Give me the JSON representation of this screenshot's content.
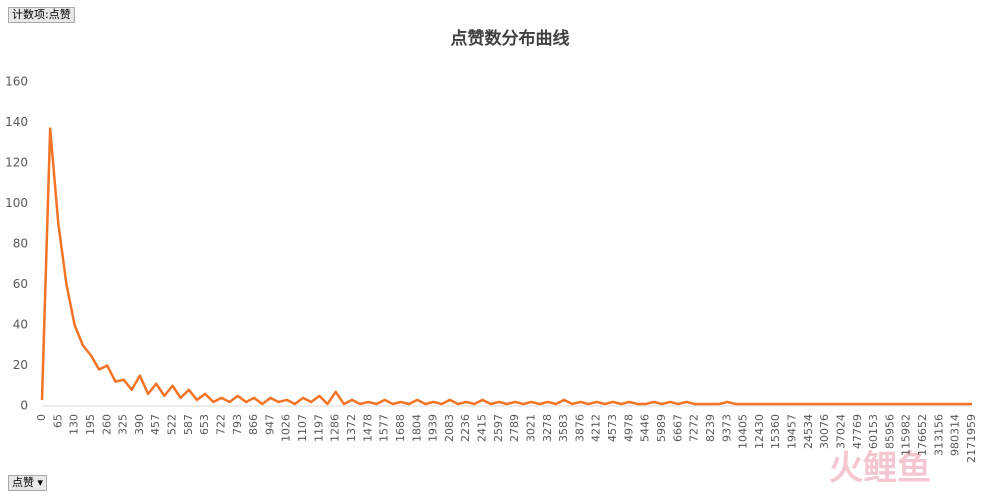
{
  "pivot_button": "计数项:点赞",
  "filter_button": "点赞",
  "watermark": "火鲤鱼",
  "chart_data": {
    "type": "line",
    "title": "点赞数分布曲线",
    "color": "#f47425",
    "categories": [
      "0",
      null,
      "65",
      null,
      "130",
      null,
      "195",
      null,
      "260",
      null,
      "325",
      null,
      "390",
      null,
      "457",
      null,
      "522",
      null,
      "587",
      null,
      "653",
      null,
      "722",
      null,
      "793",
      null,
      "866",
      null,
      "947",
      null,
      "1026",
      null,
      "1107",
      null,
      "1197",
      null,
      "1286",
      null,
      "1372",
      null,
      "1478",
      null,
      "1577",
      null,
      "1688",
      null,
      "1804",
      null,
      "1939",
      null,
      "2083",
      null,
      "2236",
      null,
      "2415",
      null,
      "2597",
      null,
      "2789",
      null,
      "3021",
      null,
      "3278",
      null,
      "3583",
      null,
      "3876",
      null,
      "4212",
      null,
      "4573",
      null,
      "4978",
      null,
      "5446",
      null,
      "5989",
      null,
      "6667",
      null,
      "7272",
      null,
      "8239",
      null,
      "9373",
      null,
      "10405",
      null,
      "12430",
      null,
      "15360",
      null,
      "19457",
      null,
      "24534",
      null,
      "30076",
      null,
      "37024",
      null,
      "47769",
      null,
      "60153",
      null,
      "85956",
      null,
      "115982",
      null,
      "176652",
      null,
      "313156",
      null,
      "980314",
      null,
      "2171959"
    ],
    "values": [
      3,
      137,
      90,
      60,
      40,
      30,
      25,
      18,
      20,
      12,
      13,
      8,
      15,
      6,
      11,
      5,
      10,
      4,
      8,
      3,
      6,
      2,
      4,
      2,
      5,
      2,
      4,
      1,
      4,
      2,
      3,
      1,
      4,
      2,
      5,
      1,
      7,
      1,
      3,
      1,
      2,
      1,
      3,
      1,
      2,
      1,
      3,
      1,
      2,
      1,
      3,
      1,
      2,
      1,
      3,
      1,
      2,
      1,
      2,
      1,
      2,
      1,
      2,
      1,
      3,
      1,
      2,
      1,
      2,
      1,
      2,
      1,
      2,
      1,
      1,
      2,
      1,
      2,
      1,
      2,
      1,
      1,
      1,
      1,
      2,
      1,
      1,
      1,
      1,
      1,
      1,
      1,
      1,
      1,
      1,
      1,
      1,
      1,
      1,
      1,
      1,
      1,
      1,
      1,
      1,
      1,
      1,
      1,
      1,
      1,
      1,
      1,
      1,
      1,
      1
    ],
    "ylim": [
      0,
      160
    ],
    "yticks": [
      0,
      20,
      40,
      60,
      80,
      100,
      120,
      140,
      160
    ],
    "grid": false
  }
}
